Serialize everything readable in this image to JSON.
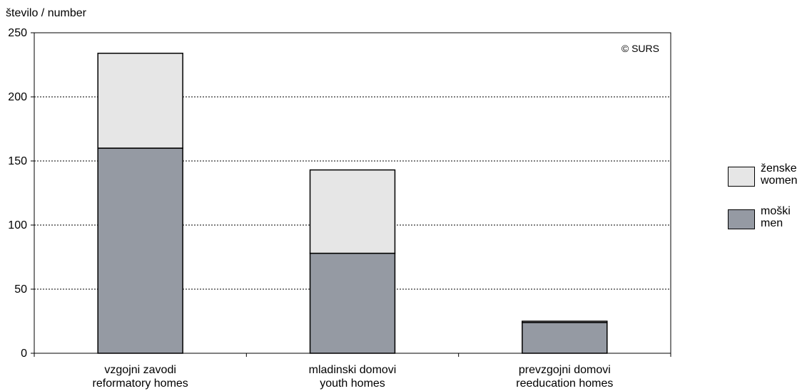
{
  "chart_data": {
    "type": "bar",
    "stacked": true,
    "ylabel": "število / number",
    "ylim": [
      0,
      250
    ],
    "yticks": [
      0,
      50,
      100,
      150,
      200,
      250
    ],
    "grid": "horizontal dotted",
    "watermark": "© SURS",
    "legend_position": "right",
    "categories": [
      [
        "vzgojni zavodi",
        "reformatory homes"
      ],
      [
        "mladinski domovi",
        "youth homes"
      ],
      [
        "prevzgojni domovi",
        "reeducation homes"
      ]
    ],
    "series": [
      {
        "name": [
          "moški",
          "men"
        ],
        "color": "#959aa3",
        "values": [
          160,
          78,
          24
        ]
      },
      {
        "name": [
          "ženske",
          "women"
        ],
        "color": "#e6e6e6",
        "values": [
          74,
          65,
          1
        ]
      }
    ]
  }
}
